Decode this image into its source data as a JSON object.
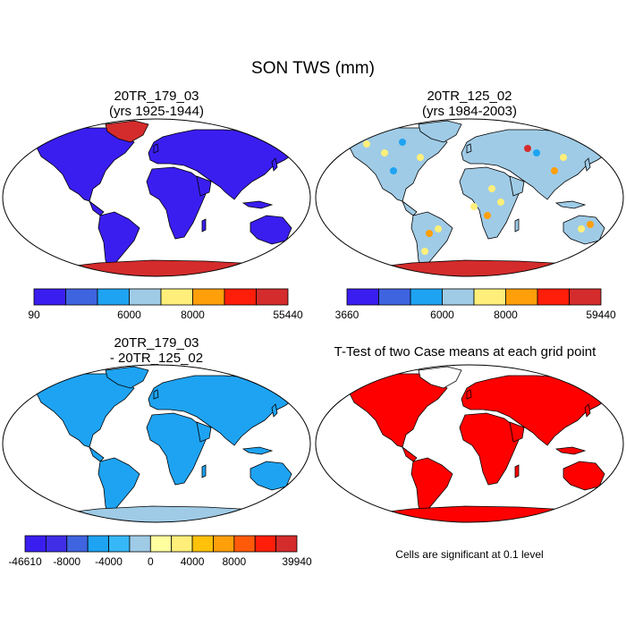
{
  "title": "SON TWS (mm)",
  "panels": [
    {
      "id": "p1",
      "title_lines": [
        "20TR_179_03",
        "(yrs 1925-1944)"
      ],
      "fill": "#3a1ef0"
    },
    {
      "id": "p2",
      "title_lines": [
        "20TR_125_02",
        "(yrs 1984-2003)"
      ],
      "fill": "#9fcbe6"
    },
    {
      "id": "p3",
      "title_lines": [
        "20TR_179_03",
        "- 20TR_125_02"
      ],
      "fill": "#1ea3f2"
    },
    {
      "id": "p4",
      "title_lines": [
        "T-Test of two Case means at each grid point"
      ],
      "fill": "#ff0000"
    }
  ],
  "colorbars": [
    {
      "id": "cb1",
      "colors": [
        "#3a1ef0",
        "#3f64e0",
        "#1ea3f2",
        "#9fcbe6",
        "#ffef7a",
        "#ff9f0a",
        "#ff1e0a",
        "#d42c2c"
      ],
      "labels": [
        "90",
        "6000",
        "8000",
        "55440"
      ]
    },
    {
      "id": "cb2",
      "colors": [
        "#3a1ef0",
        "#3f64e0",
        "#1ea3f2",
        "#9fcbe6",
        "#ffef7a",
        "#ff9f0a",
        "#ff1e0a",
        "#d42c2c"
      ],
      "labels": [
        "3660",
        "6000",
        "8000",
        "59440"
      ]
    },
    {
      "id": "cb3",
      "colors": [
        "#3a1ef0",
        "#3f2ee6",
        "#3f64e0",
        "#1ea3f2",
        "#36b7f7",
        "#9fcbe6",
        "#ffffa0",
        "#ffef7a",
        "#ffc10a",
        "#ff9f0a",
        "#ff5a0a",
        "#ff1e0a",
        "#d42c2c"
      ],
      "labels": [
        "-46610",
        "-8000",
        "-4000",
        "0",
        "4000",
        "8000",
        "39940"
      ]
    }
  ],
  "note": "Cells are significant at 0.1 level"
}
